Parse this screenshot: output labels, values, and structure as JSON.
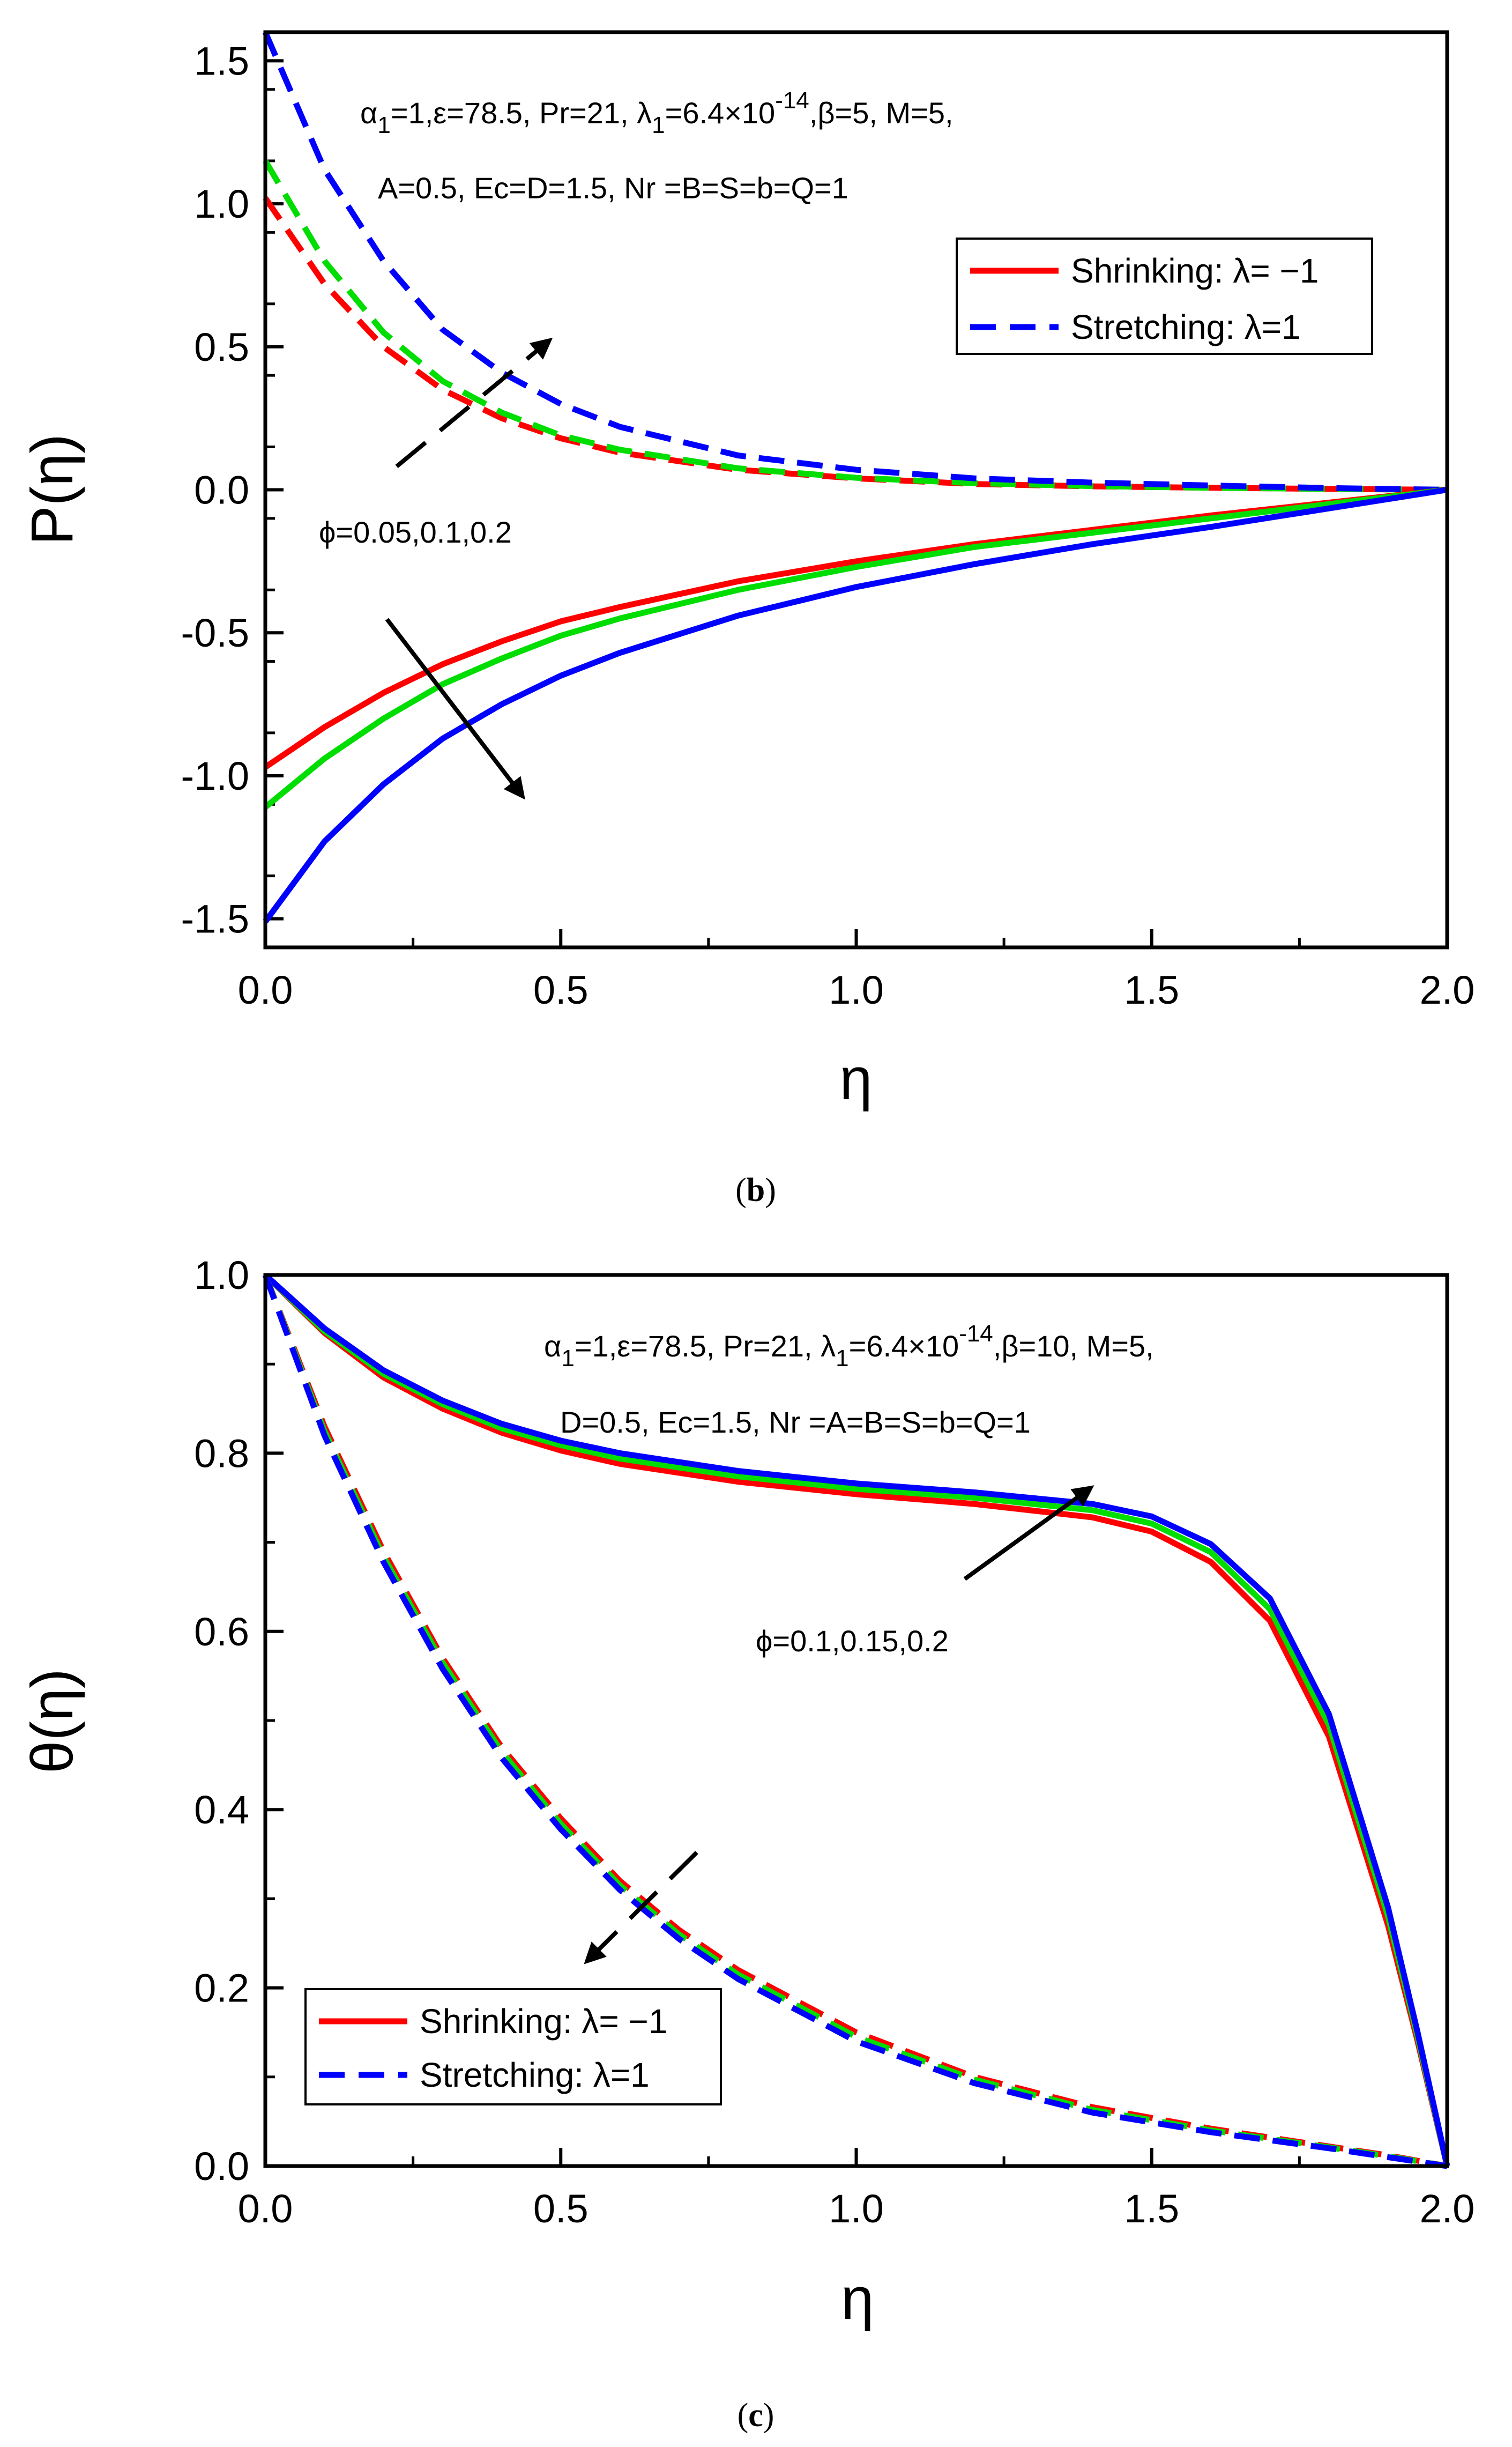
{
  "chart_data": [
    {
      "type": "line",
      "panel": "b",
      "caption": {
        "open": "(",
        "letter": "b",
        "close": ")"
      },
      "xlabel": "η",
      "ylabel": "P(η)",
      "xlim": [
        0,
        2
      ],
      "ylim": [
        -1.6,
        1.6
      ],
      "xticks": [
        "0.0",
        "0.5",
        "1.0",
        "1.5",
        "2.0"
      ],
      "yticks": [
        "1.5",
        "1.0",
        "0.5",
        "0.0",
        "-0.5",
        "-1.0",
        "-1.5"
      ],
      "ytick_values": [
        1.5,
        1.0,
        0.5,
        0.0,
        -0.5,
        -1.0,
        -1.5
      ],
      "xtick_values": [
        0,
        0.5,
        1.0,
        1.5,
        2.0
      ],
      "params_line1": {
        "a": "α",
        "a_sub": "1",
        "b": "=1,ε=78.5, Pr=21, λ",
        "b_sub": "1",
        "c": "=6.4×10",
        "c_sup": "-14",
        "d": ",β=5, M=5,"
      },
      "params_line2": "A=0.5, Ec=D=1.5, Nr =B=S=b=Q=1",
      "phi_label": "ϕ=0.05,0.1,0.2",
      "legend": [
        {
          "label": "Shrinking: λ= −1",
          "style": "solid",
          "color": "#ff0000"
        },
        {
          "label": "Stretching: λ=1",
          "style": "dashed",
          "color": "#0000ff"
        }
      ],
      "series": [
        {
          "name": "Stretching φ=0.05",
          "style": "dashed",
          "color": "#ff0000",
          "x": [
            0,
            0.1,
            0.2,
            0.3,
            0.4,
            0.5,
            0.6,
            0.8,
            1.0,
            1.2,
            1.4,
            1.6,
            1.8,
            2.0
          ],
          "y": [
            1.02,
            0.72,
            0.5,
            0.35,
            0.25,
            0.18,
            0.13,
            0.07,
            0.04,
            0.02,
            0.012,
            0.007,
            0.003,
            0
          ]
        },
        {
          "name": "Stretching φ=0.1",
          "style": "dashed",
          "color": "#00dd00",
          "x": [
            0,
            0.1,
            0.2,
            0.3,
            0.4,
            0.5,
            0.6,
            0.8,
            1.0,
            1.2,
            1.4,
            1.6,
            1.8,
            2.0
          ],
          "y": [
            1.15,
            0.8,
            0.55,
            0.38,
            0.27,
            0.19,
            0.14,
            0.075,
            0.042,
            0.023,
            0.013,
            0.007,
            0.003,
            0
          ]
        },
        {
          "name": "Stretching φ=0.2",
          "style": "dashed",
          "color": "#0000ff",
          "x": [
            0,
            0.1,
            0.2,
            0.3,
            0.4,
            0.5,
            0.6,
            0.8,
            1.0,
            1.2,
            1.4,
            1.6,
            1.8,
            2.0
          ],
          "y": [
            1.6,
            1.12,
            0.8,
            0.56,
            0.41,
            0.3,
            0.22,
            0.12,
            0.07,
            0.04,
            0.025,
            0.015,
            0.006,
            0
          ]
        },
        {
          "name": "Shrinking φ=0.05",
          "style": "solid",
          "color": "#ff0000",
          "x": [
            0,
            0.1,
            0.2,
            0.3,
            0.4,
            0.5,
            0.6,
            0.8,
            1.0,
            1.2,
            1.4,
            1.6,
            1.8,
            2.0
          ],
          "y": [
            -0.97,
            -0.83,
            -0.71,
            -0.61,
            -0.53,
            -0.46,
            -0.41,
            -0.32,
            -0.25,
            -0.19,
            -0.14,
            -0.09,
            -0.045,
            0
          ]
        },
        {
          "name": "Shrinking φ=0.1",
          "style": "solid",
          "color": "#00dd00",
          "x": [
            0,
            0.1,
            0.2,
            0.3,
            0.4,
            0.5,
            0.6,
            0.8,
            1.0,
            1.2,
            1.4,
            1.6,
            1.8,
            2.0
          ],
          "y": [
            -1.11,
            -0.94,
            -0.8,
            -0.68,
            -0.59,
            -0.51,
            -0.45,
            -0.35,
            -0.27,
            -0.2,
            -0.15,
            -0.1,
            -0.05,
            0
          ]
        },
        {
          "name": "Shrinking φ=0.2",
          "style": "solid",
          "color": "#0000ff",
          "x": [
            0,
            0.1,
            0.2,
            0.3,
            0.4,
            0.5,
            0.6,
            0.8,
            1.0,
            1.2,
            1.4,
            1.6,
            1.8,
            2.0
          ],
          "y": [
            -1.51,
            -1.23,
            -1.03,
            -0.87,
            -0.75,
            -0.65,
            -0.57,
            -0.44,
            -0.34,
            -0.26,
            -0.19,
            -0.13,
            -0.065,
            0
          ]
        }
      ]
    },
    {
      "type": "line",
      "panel": "c",
      "caption": {
        "open": "(",
        "letter": "c",
        "close": ")"
      },
      "xlabel": "η",
      "ylabel": "θ(η)",
      "xlim": [
        0,
        2
      ],
      "ylim": [
        0,
        1
      ],
      "xticks": [
        "0.0",
        "0.5",
        "1.0",
        "1.5",
        "2.0"
      ],
      "yticks": [
        "1.0",
        "0.8",
        "0.6",
        "0.4",
        "0.2",
        "0.0"
      ],
      "ytick_values": [
        1.0,
        0.8,
        0.6,
        0.4,
        0.2,
        0.0
      ],
      "xtick_values": [
        0,
        0.5,
        1.0,
        1.5,
        2.0
      ],
      "params_line1": {
        "a": "α",
        "a_sub": "1",
        "b": "=1,ε=78.5, Pr=21, λ",
        "b_sub": "1",
        "c": "=6.4×10",
        "c_sup": "-14",
        "d": ",β=10, M=5,"
      },
      "params_line2": "D=0.5, Ec=1.5, Nr =A=B=S=b=Q=1",
      "phi_label": "ϕ=0.1,0.15,0.2",
      "legend": [
        {
          "label": "Shrinking: λ= −1",
          "style": "solid",
          "color": "#ff0000"
        },
        {
          "label": "Stretching: λ=1",
          "style": "dashed",
          "color": "#0000ff"
        }
      ],
      "series": [
        {
          "name": "Shrinking φ=0.1",
          "style": "solid",
          "color": "#ff0000",
          "x": [
            0,
            0.1,
            0.2,
            0.3,
            0.4,
            0.5,
            0.6,
            0.8,
            1.0,
            1.2,
            1.4,
            1.5,
            1.6,
            1.7,
            1.8,
            1.9,
            1.95,
            2.0
          ],
          "y": [
            1.0,
            0.935,
            0.885,
            0.85,
            0.823,
            0.803,
            0.788,
            0.768,
            0.754,
            0.743,
            0.728,
            0.712,
            0.678,
            0.612,
            0.482,
            0.27,
            0.14,
            0
          ]
        },
        {
          "name": "Shrinking φ=0.15",
          "style": "solid",
          "color": "#00dd00",
          "x": [
            0,
            0.1,
            0.2,
            0.3,
            0.4,
            0.5,
            0.6,
            0.8,
            1.0,
            1.2,
            1.4,
            1.5,
            1.6,
            1.7,
            1.8,
            1.9,
            1.95,
            2.0
          ],
          "y": [
            1.0,
            0.937,
            0.889,
            0.855,
            0.828,
            0.809,
            0.794,
            0.774,
            0.76,
            0.75,
            0.736,
            0.721,
            0.689,
            0.625,
            0.495,
            0.28,
            0.145,
            0
          ]
        },
        {
          "name": "Shrinking φ=0.2",
          "style": "solid",
          "color": "#0000ff",
          "x": [
            0,
            0.1,
            0.2,
            0.3,
            0.4,
            0.5,
            0.6,
            0.8,
            1.0,
            1.2,
            1.4,
            1.5,
            1.6,
            1.7,
            1.8,
            1.9,
            1.95,
            2.0
          ],
          "y": [
            1.0,
            0.94,
            0.893,
            0.859,
            0.833,
            0.814,
            0.8,
            0.78,
            0.766,
            0.756,
            0.743,
            0.729,
            0.698,
            0.637,
            0.507,
            0.29,
            0.15,
            0
          ]
        },
        {
          "name": "Stretching φ=0.1",
          "style": "dashed",
          "color": "#ff0000",
          "x": [
            0,
            0.1,
            0.2,
            0.3,
            0.4,
            0.5,
            0.6,
            0.7,
            0.8,
            1.0,
            1.2,
            1.4,
            1.6,
            1.8,
            1.9,
            2.0
          ],
          "y": [
            1.0,
            0.83,
            0.69,
            0.57,
            0.47,
            0.39,
            0.32,
            0.265,
            0.22,
            0.15,
            0.1,
            0.066,
            0.042,
            0.022,
            0.012,
            0
          ]
        },
        {
          "name": "Stretching φ=0.15",
          "style": "dashed",
          "color": "#00dd00",
          "x": [
            0,
            0.1,
            0.2,
            0.3,
            0.4,
            0.5,
            0.6,
            0.7,
            0.8,
            1.0,
            1.2,
            1.4,
            1.6,
            1.8,
            1.9,
            2.0
          ],
          "y": [
            1.0,
            0.825,
            0.684,
            0.565,
            0.465,
            0.384,
            0.315,
            0.26,
            0.215,
            0.145,
            0.097,
            0.063,
            0.04,
            0.021,
            0.011,
            0
          ]
        },
        {
          "name": "Stretching φ=0.2",
          "style": "dashed",
          "color": "#0000ff",
          "x": [
            0,
            0.1,
            0.2,
            0.3,
            0.4,
            0.5,
            0.6,
            0.7,
            0.8,
            1.0,
            1.2,
            1.4,
            1.6,
            1.8,
            1.9,
            2.0
          ],
          "y": [
            1.0,
            0.82,
            0.678,
            0.558,
            0.458,
            0.378,
            0.31,
            0.255,
            0.21,
            0.14,
            0.093,
            0.06,
            0.038,
            0.02,
            0.01,
            0
          ]
        }
      ]
    }
  ]
}
